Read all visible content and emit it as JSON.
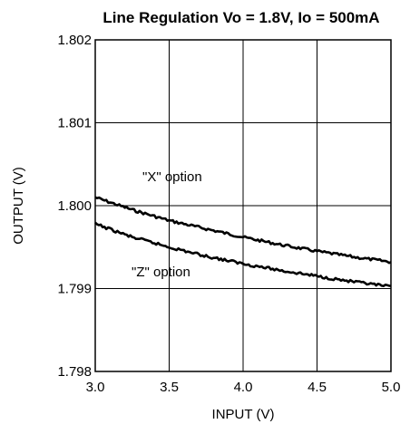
{
  "chart_data": {
    "type": "line",
    "title": "Line Regulation Vo = 1.8V, Io = 500mA",
    "xlabel": "INPUT (V)",
    "ylabel": "OUTPUT (V)",
    "xlim": [
      3.0,
      5.0
    ],
    "ylim": [
      1.798,
      1.802
    ],
    "x_ticks": [
      "3.0",
      "3.5",
      "4.0",
      "4.5",
      "5.0"
    ],
    "y_ticks": [
      "1.802",
      "1.801",
      "1.800",
      "1.799",
      "1.798"
    ],
    "grid": true,
    "series": [
      {
        "name": "\"X\" option",
        "x": [
          3.0,
          3.25,
          3.5,
          3.75,
          4.0,
          4.25,
          4.5,
          4.75,
          5.0
        ],
        "values": [
          1.8001,
          1.79995,
          1.79982,
          1.79972,
          1.79962,
          1.79953,
          1.79945,
          1.79938,
          1.79932
        ]
      },
      {
        "name": "\"Z\" option",
        "x": [
          3.0,
          3.25,
          3.5,
          3.75,
          4.0,
          4.25,
          4.5,
          4.75,
          5.0
        ],
        "values": [
          1.79978,
          1.79962,
          1.7995,
          1.79939,
          1.7993,
          1.79922,
          1.79915,
          1.79908,
          1.79902
        ]
      }
    ]
  }
}
